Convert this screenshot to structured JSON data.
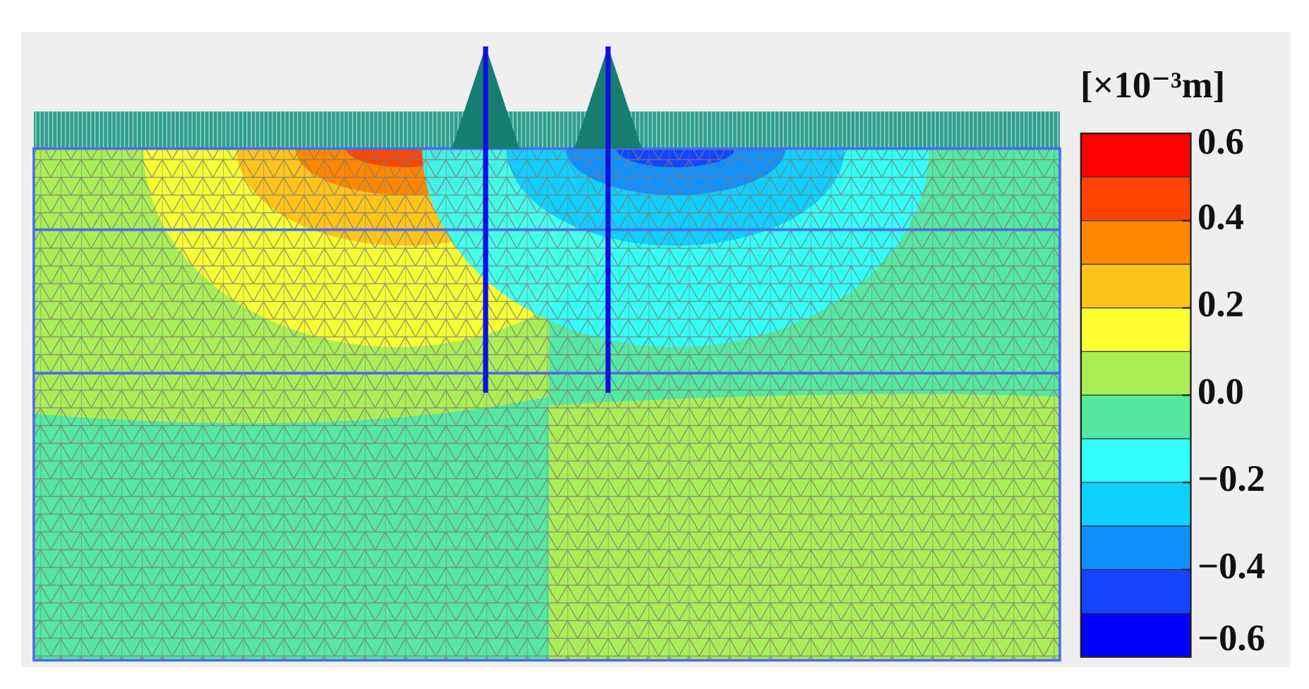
{
  "colorbar": {
    "title": "[×10⁻³m]",
    "lim": [
      -0.6,
      0.6
    ],
    "ticks": [
      0.6,
      0.4,
      0.2,
      {
        "value": 0,
        "label": "0.0"
      },
      {
        "value": -0.2,
        "label": "−0.2"
      },
      {
        "value": -0.4,
        "label": "−0.4"
      },
      {
        "value": -0.6,
        "label": "−0.6"
      }
    ],
    "colors": [
      "#ff0000",
      "#ff4400",
      "#ff8800",
      "#ffc41a",
      "#ffff30",
      "#aaee55",
      "#55e8a0",
      "#30ffff",
      "#10d0ff",
      "#1090ff",
      "#1444ff",
      "#0000ff"
    ]
  }
}
